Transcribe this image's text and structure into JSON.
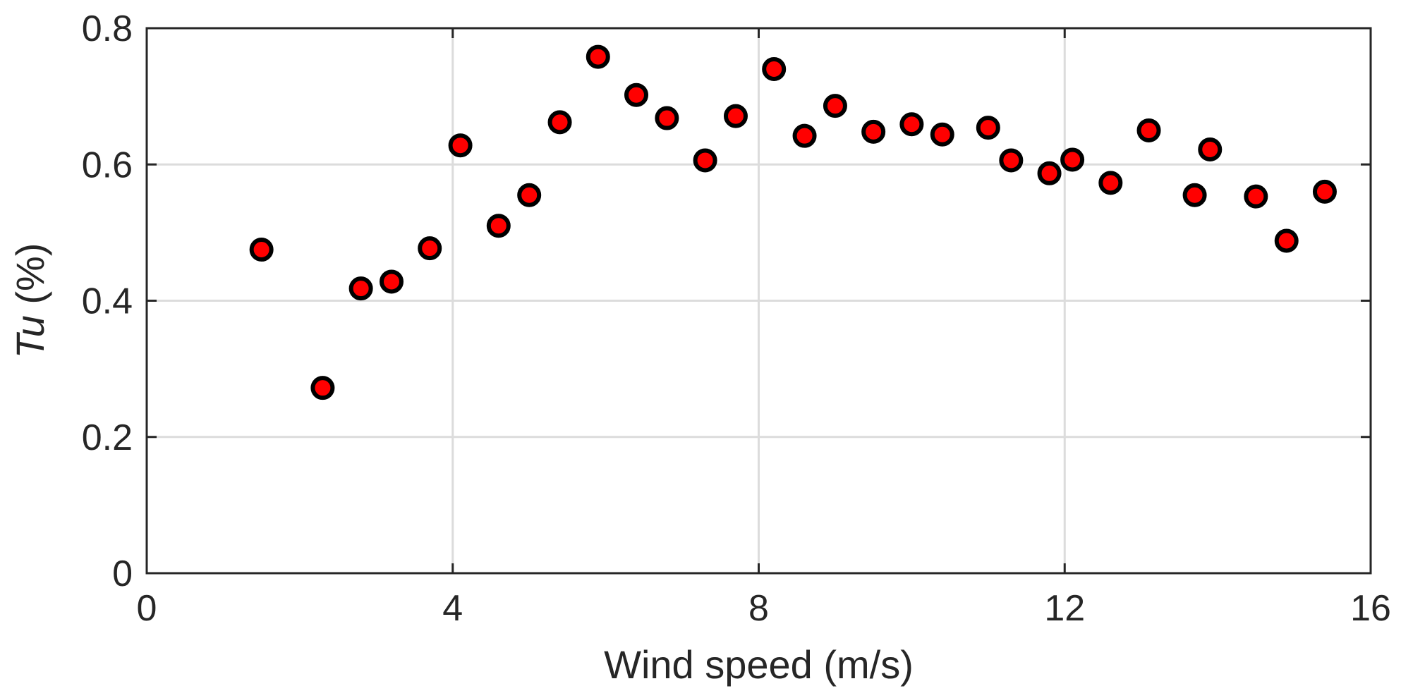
{
  "chart_data": {
    "type": "scatter",
    "x_label": "Wind speed (m/s)",
    "y_label_symbol": "Tu",
    "y_label_unit": " (%)",
    "xlim": [
      0,
      16
    ],
    "ylim": [
      0,
      0.8
    ],
    "x_ticks": [
      0,
      4,
      8,
      12,
      16
    ],
    "x_tick_labels": [
      "0",
      "4",
      "8",
      "12",
      "16"
    ],
    "y_ticks": [
      0,
      0.2,
      0.4,
      0.6,
      0.8
    ],
    "y_tick_labels": [
      "0",
      "0.2",
      "0.4",
      "0.6",
      "0.8"
    ],
    "grid": true,
    "marker_fill": "#ff0000",
    "marker_edge": "#000000",
    "series": [
      {
        "points": [
          {
            "x": 1.5,
            "y": 0.475
          },
          {
            "x": 2.3,
            "y": 0.272
          },
          {
            "x": 2.8,
            "y": 0.418
          },
          {
            "x": 3.2,
            "y": 0.428
          },
          {
            "x": 3.7,
            "y": 0.477
          },
          {
            "x": 4.1,
            "y": 0.628
          },
          {
            "x": 4.6,
            "y": 0.51
          },
          {
            "x": 5.0,
            "y": 0.555
          },
          {
            "x": 5.4,
            "y": 0.662
          },
          {
            "x": 5.9,
            "y": 0.758
          },
          {
            "x": 6.4,
            "y": 0.702
          },
          {
            "x": 6.8,
            "y": 0.668
          },
          {
            "x": 7.3,
            "y": 0.606
          },
          {
            "x": 7.7,
            "y": 0.671
          },
          {
            "x": 8.2,
            "y": 0.74
          },
          {
            "x": 8.6,
            "y": 0.642
          },
          {
            "x": 9.0,
            "y": 0.686
          },
          {
            "x": 9.5,
            "y": 0.648
          },
          {
            "x": 10.0,
            "y": 0.659
          },
          {
            "x": 10.4,
            "y": 0.644
          },
          {
            "x": 11.0,
            "y": 0.654
          },
          {
            "x": 11.3,
            "y": 0.606
          },
          {
            "x": 11.8,
            "y": 0.587
          },
          {
            "x": 12.1,
            "y": 0.607
          },
          {
            "x": 12.6,
            "y": 0.573
          },
          {
            "x": 13.1,
            "y": 0.65
          },
          {
            "x": 13.7,
            "y": 0.555
          },
          {
            "x": 13.9,
            "y": 0.622
          },
          {
            "x": 14.5,
            "y": 0.553
          },
          {
            "x": 14.9,
            "y": 0.488
          },
          {
            "x": 15.4,
            "y": 0.56
          }
        ]
      }
    ]
  }
}
